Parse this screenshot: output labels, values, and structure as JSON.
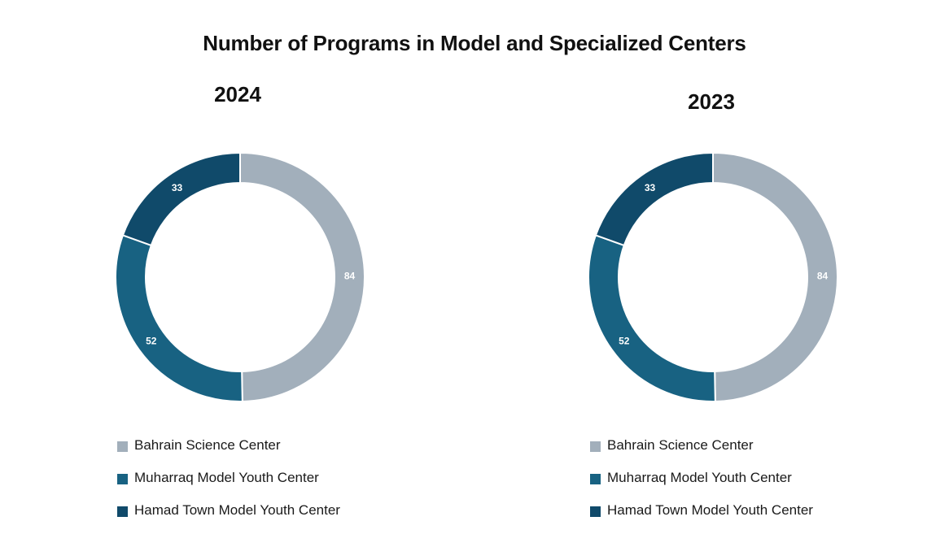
{
  "title": "Number of Programs in Model and Specialized Centers",
  "colors": {
    "Bahrain Science Center": "#a2afbb",
    "Muharraq Model Youth Center": "#186282",
    "Hamad Town Model Youth Center": "#104a6a"
  },
  "chart_data": [
    {
      "type": "pie",
      "donut": true,
      "title": "2024",
      "categories": [
        "Bahrain Science Center",
        "Muharraq Model Youth Center",
        "Hamad Town Model Youth Center"
      ],
      "values": [
        84,
        52,
        33
      ],
      "data_labels": [
        "84",
        "52",
        "33"
      ],
      "legend": "bottom"
    },
    {
      "type": "pie",
      "donut": true,
      "title": "2023",
      "categories": [
        "Bahrain Science Center",
        "Muharraq Model Youth Center",
        "Hamad Town Model Youth Center"
      ],
      "values": [
        84,
        52,
        33
      ],
      "data_labels": [
        "84",
        "52",
        "33"
      ],
      "legend": "bottom"
    }
  ]
}
